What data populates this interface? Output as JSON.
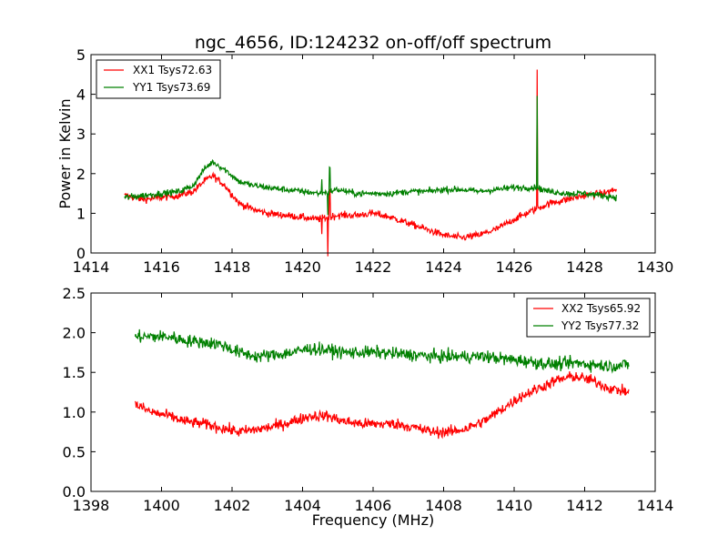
{
  "chart_data": [
    {
      "type": "line",
      "title": "ngc_4656, ID:124232 on-off/off spectrum",
      "xlabel": "",
      "ylabel": "Power in Kelvin",
      "xlim": [
        1414,
        1430
      ],
      "ylim": [
        0,
        5
      ],
      "xticks": [
        "1414",
        "1416",
        "1418",
        "1420",
        "1422",
        "1424",
        "1426",
        "1428",
        "1430"
      ],
      "yticks": [
        "0",
        "1",
        "2",
        "3",
        "4",
        "5"
      ],
      "legend_position": "top-left",
      "grid": false,
      "x_range_of_data": [
        1414.95,
        1428.9
      ],
      "series": [
        {
          "name": "XX1 Tsys72.63",
          "color": "#ff0000",
          "noise": 0.09,
          "anchors": [
            [
              1414.95,
              1.45
            ],
            [
              1415.5,
              1.35
            ],
            [
              1416.0,
              1.4
            ],
            [
              1416.5,
              1.45
            ],
            [
              1416.9,
              1.55
            ],
            [
              1417.2,
              1.8
            ],
            [
              1417.45,
              1.95
            ],
            [
              1417.8,
              1.7
            ],
            [
              1418.2,
              1.25
            ],
            [
              1418.6,
              1.1
            ],
            [
              1419.0,
              1.0
            ],
            [
              1419.5,
              0.95
            ],
            [
              1420.0,
              0.9
            ],
            [
              1420.4,
              0.85
            ],
            [
              1421.0,
              0.95
            ],
            [
              1421.5,
              0.95
            ],
            [
              1422.0,
              1.0
            ],
            [
              1422.5,
              0.9
            ],
            [
              1423.0,
              0.75
            ],
            [
              1423.5,
              0.6
            ],
            [
              1424.0,
              0.45
            ],
            [
              1424.5,
              0.38
            ],
            [
              1425.0,
              0.45
            ],
            [
              1425.5,
              0.6
            ],
            [
              1426.0,
              0.85
            ],
            [
              1426.6,
              1.1
            ],
            [
              1427.0,
              1.25
            ],
            [
              1427.5,
              1.35
            ],
            [
              1428.0,
              1.45
            ],
            [
              1428.5,
              1.5
            ],
            [
              1428.9,
              1.6
            ]
          ],
          "features": [
            {
              "x": 1420.55,
              "dy": -0.45
            },
            {
              "x": 1420.72,
              "dy": -1.0
            },
            {
              "x": 1420.77,
              "dy": 0.65
            },
            {
              "x": 1426.65,
              "dy": 3.5
            }
          ]
        },
        {
          "name": "YY1 Tsys73.69",
          "color": "#008000",
          "noise": 0.08,
          "anchors": [
            [
              1414.95,
              1.4
            ],
            [
              1415.5,
              1.45
            ],
            [
              1416.0,
              1.5
            ],
            [
              1416.5,
              1.55
            ],
            [
              1416.9,
              1.7
            ],
            [
              1417.2,
              2.1
            ],
            [
              1417.45,
              2.3
            ],
            [
              1417.8,
              2.1
            ],
            [
              1418.2,
              1.8
            ],
            [
              1418.6,
              1.7
            ],
            [
              1419.0,
              1.65
            ],
            [
              1419.5,
              1.6
            ],
            [
              1420.0,
              1.55
            ],
            [
              1420.5,
              1.5
            ],
            [
              1421.0,
              1.6
            ],
            [
              1421.5,
              1.5
            ],
            [
              1422.0,
              1.5
            ],
            [
              1422.5,
              1.5
            ],
            [
              1423.0,
              1.55
            ],
            [
              1423.5,
              1.55
            ],
            [
              1424.0,
              1.6
            ],
            [
              1424.5,
              1.6
            ],
            [
              1425.0,
              1.55
            ],
            [
              1425.5,
              1.6
            ],
            [
              1426.0,
              1.65
            ],
            [
              1426.6,
              1.65
            ],
            [
              1427.0,
              1.55
            ],
            [
              1427.5,
              1.5
            ],
            [
              1428.0,
              1.5
            ],
            [
              1428.5,
              1.45
            ],
            [
              1428.9,
              1.4
            ]
          ],
          "features": [
            {
              "x": 1420.55,
              "dy": 0.4
            },
            {
              "x": 1420.72,
              "dy": -0.6
            },
            {
              "x": 1420.77,
              "dy": 0.55
            },
            {
              "x": 1426.65,
              "dy": 2.4
            }
          ]
        }
      ]
    },
    {
      "type": "line",
      "title": "",
      "xlabel": "Frequency (MHz)",
      "ylabel": "",
      "xlim": [
        1398,
        1414
      ],
      "ylim": [
        0,
        2.5
      ],
      "xticks": [
        "1398",
        "1400",
        "1402",
        "1404",
        "1406",
        "1408",
        "1410",
        "1412",
        "1414"
      ],
      "yticks": [
        "0.0",
        "0.5",
        "1.0",
        "1.5",
        "2.0",
        "2.5"
      ],
      "legend_position": "top-right",
      "grid": false,
      "x_range_of_data": [
        1399.25,
        1413.25
      ],
      "series": [
        {
          "name": "XX2 Tsys65.92",
          "color": "#ff0000",
          "noise": 0.07,
          "anchors": [
            [
              1399.25,
              1.1
            ],
            [
              1399.7,
              1.0
            ],
            [
              1400.2,
              0.95
            ],
            [
              1400.7,
              0.88
            ],
            [
              1401.2,
              0.85
            ],
            [
              1401.7,
              0.8
            ],
            [
              1402.2,
              0.75
            ],
            [
              1402.7,
              0.78
            ],
            [
              1403.2,
              0.82
            ],
            [
              1403.7,
              0.88
            ],
            [
              1404.2,
              0.95
            ],
            [
              1404.7,
              0.95
            ],
            [
              1405.2,
              0.88
            ],
            [
              1405.7,
              0.85
            ],
            [
              1406.2,
              0.85
            ],
            [
              1406.7,
              0.85
            ],
            [
              1407.2,
              0.8
            ],
            [
              1407.7,
              0.75
            ],
            [
              1408.2,
              0.75
            ],
            [
              1408.7,
              0.8
            ],
            [
              1409.2,
              0.9
            ],
            [
              1409.7,
              1.05
            ],
            [
              1410.2,
              1.2
            ],
            [
              1410.7,
              1.3
            ],
            [
              1411.2,
              1.4
            ],
            [
              1411.7,
              1.45
            ],
            [
              1412.2,
              1.4
            ],
            [
              1412.7,
              1.3
            ],
            [
              1413.25,
              1.25
            ]
          ],
          "features": []
        },
        {
          "name": "YY2 Tsys77.32",
          "color": "#008000",
          "noise": 0.08,
          "anchors": [
            [
              1399.25,
              1.95
            ],
            [
              1399.7,
              1.95
            ],
            [
              1400.2,
              1.95
            ],
            [
              1400.7,
              1.9
            ],
            [
              1401.2,
              1.88
            ],
            [
              1401.7,
              1.85
            ],
            [
              1402.2,
              1.75
            ],
            [
              1402.7,
              1.7
            ],
            [
              1403.2,
              1.72
            ],
            [
              1403.7,
              1.75
            ],
            [
              1404.2,
              1.8
            ],
            [
              1404.7,
              1.78
            ],
            [
              1405.2,
              1.75
            ],
            [
              1405.7,
              1.75
            ],
            [
              1406.2,
              1.75
            ],
            [
              1406.7,
              1.73
            ],
            [
              1407.2,
              1.72
            ],
            [
              1407.7,
              1.7
            ],
            [
              1408.2,
              1.7
            ],
            [
              1408.7,
              1.7
            ],
            [
              1409.2,
              1.7
            ],
            [
              1409.7,
              1.67
            ],
            [
              1410.2,
              1.65
            ],
            [
              1410.7,
              1.62
            ],
            [
              1411.2,
              1.6
            ],
            [
              1411.7,
              1.62
            ],
            [
              1412.2,
              1.6
            ],
            [
              1412.7,
              1.58
            ],
            [
              1413.25,
              1.6
            ]
          ],
          "features": []
        }
      ]
    }
  ]
}
